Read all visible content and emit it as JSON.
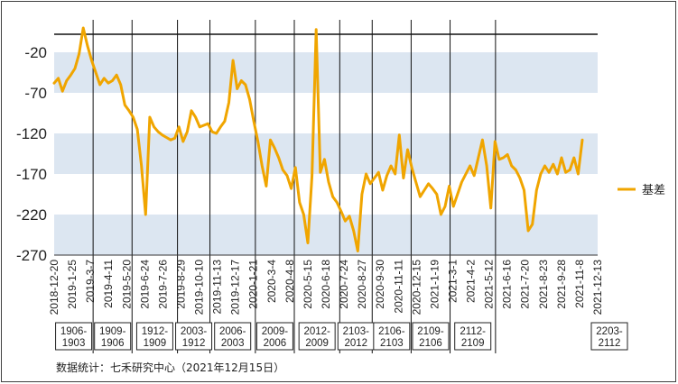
{
  "chart_data": {
    "type": "line",
    "title": "",
    "xlabel": "",
    "ylabel": "",
    "ylim": [
      -270,
      30
    ],
    "y_ticks": [
      -20,
      -70,
      -120,
      -170,
      -220,
      -270
    ],
    "band_color": "#dce6f1",
    "line_color": "#f0a500",
    "grid": false,
    "legend_position": "right",
    "x_tick_labels": [
      "2018-12-20",
      "2019-1-25",
      "2019-3-7",
      "2019-4-11",
      "2019-5-20",
      "2019-6-24",
      "2019-7-26",
      "2019-8-29",
      "2019-10-10",
      "2019-11-13",
      "2019-12-17",
      "2020-1-21",
      "2020-3-4",
      "2020-4-8",
      "2020-5-15",
      "2020-6-18",
      "2020-7-24",
      "2020-8-27",
      "2020-9-30",
      "2020-11-11",
      "2020-12-15",
      "2021-1-19",
      "2021-3-1",
      "2021-4-2",
      "2021-5-12",
      "2021-6-16",
      "2021-7-20",
      "2021-8-23",
      "2021-9-28",
      "2021-11-8",
      "2021-12-13"
    ],
    "contract_windows": [
      {
        "label": "1906-1903",
        "start_index": 0,
        "end_index": 6
      },
      {
        "label": "1909-1906",
        "start_index": 6,
        "end_index": 12
      },
      {
        "label": "1912-1909",
        "start_index": 12,
        "end_index": 19
      },
      {
        "label": "2003-1912",
        "start_index": 19,
        "end_index": 24
      },
      {
        "label": "2006-2003",
        "start_index": 24,
        "end_index": 31
      },
      {
        "label": "2009-2006",
        "start_index": 31,
        "end_index": 37
      },
      {
        "label": "2012-2009",
        "start_index": 37,
        "end_index": 44
      },
      {
        "label": "2103-2012",
        "start_index": 44,
        "end_index": 49
      },
      {
        "label": "2106-2103",
        "start_index": 49,
        "end_index": 55
      },
      {
        "label": "2109-2106",
        "start_index": 55,
        "end_index": 61
      },
      {
        "label": "2112-2109",
        "start_index": 61,
        "end_index": 68
      },
      {
        "label": "2203-2112",
        "start_index": 68,
        "end_index": 74
      }
    ],
    "series": [
      {
        "name": "基差",
        "values": [
          -58,
          -52,
          -68,
          -55,
          -48,
          -40,
          -22,
          10,
          -12,
          -30,
          -45,
          -60,
          -52,
          -58,
          -55,
          -48,
          -60,
          -85,
          -92,
          -100,
          -115,
          -160,
          -220,
          -100,
          -112,
          -118,
          -122,
          -125,
          -128,
          -126,
          -112,
          -130,
          -118,
          -92,
          -100,
          -112,
          -110,
          -108,
          -118,
          -120,
          -112,
          -105,
          -82,
          -30,
          -65,
          -55,
          -60,
          -78,
          -105,
          -130,
          -160,
          -185,
          -128,
          -138,
          -150,
          -165,
          -172,
          -188,
          -162,
          -205,
          -220,
          -255,
          -172,
          8,
          -168,
          -152,
          -180,
          -198,
          -205,
          -216,
          -228,
          -222,
          -240,
          -265,
          -195,
          -170,
          -182,
          -175,
          -168,
          -190,
          -172,
          -160,
          -170,
          -122,
          -175,
          -140,
          -162,
          -180,
          -198,
          -190,
          -182,
          -188,
          -195,
          -220,
          -210,
          -185,
          -210,
          -195,
          -180,
          -170,
          -160,
          -172,
          -150,
          -128,
          -160,
          -212,
          -130,
          -152,
          -150,
          -146,
          -160,
          -165,
          -175,
          -190,
          -240,
          -232,
          -190,
          -170,
          -160,
          -168,
          -158,
          -170,
          -150,
          -168,
          -165,
          -150,
          -170,
          -128
        ]
      }
    ],
    "source_note": "数据统计：七禾研究中心（2021年12月15日）"
  }
}
